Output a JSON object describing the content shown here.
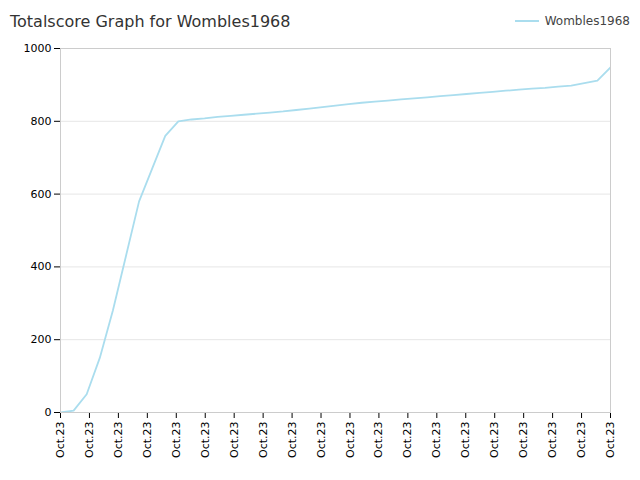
{
  "chart_data": {
    "type": "line",
    "title": "Totalscore Graph for Wombles1968",
    "x": [
      0,
      1,
      2,
      3,
      4,
      5,
      6,
      7,
      8,
      9,
      10,
      11,
      12,
      13,
      14,
      15,
      16,
      17,
      18,
      19,
      20,
      21,
      22,
      23,
      24,
      25,
      26,
      27,
      28,
      29,
      30,
      31,
      32,
      33,
      34,
      35,
      36,
      37,
      38,
      39,
      40,
      41,
      42
    ],
    "series": [
      {
        "name": "Wombles1968",
        "color": "#aaddee",
        "values": [
          0,
          5,
          50,
          150,
          280,
          430,
          580,
          670,
          760,
          800,
          805,
          808,
          812,
          815,
          818,
          821,
          824,
          827,
          831,
          835,
          839,
          843,
          847,
          851,
          854,
          857,
          860,
          863,
          866,
          869,
          872,
          875,
          878,
          881,
          884,
          887,
          890,
          892,
          895,
          898,
          905,
          912,
          948
        ]
      }
    ],
    "xlim": [
      0,
      42
    ],
    "xticks": [
      {
        "value": 0,
        "label": "Oct.23"
      },
      {
        "value": 2.210526315789474,
        "label": "Oct.23"
      },
      {
        "value": 4.421052631578948,
        "label": "Oct.23"
      },
      {
        "value": 6.631578947368421,
        "label": "Oct.23"
      },
      {
        "value": 8.842105263157896,
        "label": "Oct.23"
      },
      {
        "value": 11.052631578947368,
        "label": "Oct.23"
      },
      {
        "value": 13.263157894736842,
        "label": "Oct.23"
      },
      {
        "value": 15.473684210526315,
        "label": "Oct.23"
      },
      {
        "value": 17.68421052631579,
        "label": "Oct.23"
      },
      {
        "value": 19.894736842105264,
        "label": "Oct.23"
      },
      {
        "value": 22.105263157894736,
        "label": "Oct.23"
      },
      {
        "value": 24.31578947368421,
        "label": "Oct.23"
      },
      {
        "value": 26.526315789473685,
        "label": "Oct.23"
      },
      {
        "value": 28.736842105263158,
        "label": "Oct.23"
      },
      {
        "value": 30.94736842105263,
        "label": "Oct.23"
      },
      {
        "value": 33.1578947368421,
        "label": "Oct.23"
      },
      {
        "value": 35.36842105263158,
        "label": "Oct.23"
      },
      {
        "value": 37.578947368421055,
        "label": "Oct.23"
      },
      {
        "value": 39.78947368421053,
        "label": "Oct.23"
      },
      {
        "value": 42,
        "label": "Oct.23"
      }
    ],
    "ylim": [
      0,
      1000
    ],
    "yticks": [
      0,
      200,
      400,
      600,
      800,
      1000
    ],
    "grid": true,
    "legend": "upper right"
  }
}
